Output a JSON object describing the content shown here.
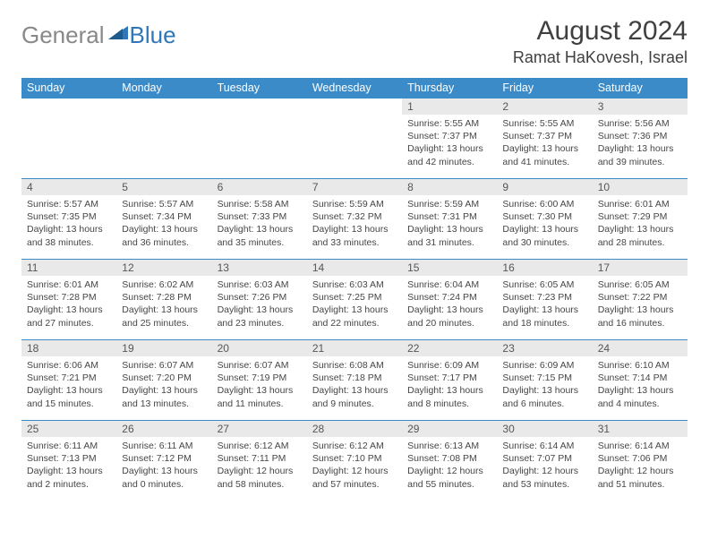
{
  "brand": {
    "general": "General",
    "blue": "Blue"
  },
  "title": "August 2024",
  "location": "Ramat HaKovesh, Israel",
  "colors": {
    "header_bg": "#3b8bc9",
    "header_text": "#ffffff",
    "daynum_bg": "#e9e9e9",
    "row_border": "#3b8bc9",
    "body_text": "#464646",
    "title_text": "#404040",
    "logo_gray": "#888888",
    "logo_blue": "#2f77b8"
  },
  "weekdays": [
    "Sunday",
    "Monday",
    "Tuesday",
    "Wednesday",
    "Thursday",
    "Friday",
    "Saturday"
  ],
  "weeks": [
    [
      null,
      null,
      null,
      null,
      {
        "n": "1",
        "sr": "5:55 AM",
        "ss": "7:37 PM",
        "dl": "13 hours and 42 minutes."
      },
      {
        "n": "2",
        "sr": "5:55 AM",
        "ss": "7:37 PM",
        "dl": "13 hours and 41 minutes."
      },
      {
        "n": "3",
        "sr": "5:56 AM",
        "ss": "7:36 PM",
        "dl": "13 hours and 39 minutes."
      }
    ],
    [
      {
        "n": "4",
        "sr": "5:57 AM",
        "ss": "7:35 PM",
        "dl": "13 hours and 38 minutes."
      },
      {
        "n": "5",
        "sr": "5:57 AM",
        "ss": "7:34 PM",
        "dl": "13 hours and 36 minutes."
      },
      {
        "n": "6",
        "sr": "5:58 AM",
        "ss": "7:33 PM",
        "dl": "13 hours and 35 minutes."
      },
      {
        "n": "7",
        "sr": "5:59 AM",
        "ss": "7:32 PM",
        "dl": "13 hours and 33 minutes."
      },
      {
        "n": "8",
        "sr": "5:59 AM",
        "ss": "7:31 PM",
        "dl": "13 hours and 31 minutes."
      },
      {
        "n": "9",
        "sr": "6:00 AM",
        "ss": "7:30 PM",
        "dl": "13 hours and 30 minutes."
      },
      {
        "n": "10",
        "sr": "6:01 AM",
        "ss": "7:29 PM",
        "dl": "13 hours and 28 minutes."
      }
    ],
    [
      {
        "n": "11",
        "sr": "6:01 AM",
        "ss": "7:28 PM",
        "dl": "13 hours and 27 minutes."
      },
      {
        "n": "12",
        "sr": "6:02 AM",
        "ss": "7:28 PM",
        "dl": "13 hours and 25 minutes."
      },
      {
        "n": "13",
        "sr": "6:03 AM",
        "ss": "7:26 PM",
        "dl": "13 hours and 23 minutes."
      },
      {
        "n": "14",
        "sr": "6:03 AM",
        "ss": "7:25 PM",
        "dl": "13 hours and 22 minutes."
      },
      {
        "n": "15",
        "sr": "6:04 AM",
        "ss": "7:24 PM",
        "dl": "13 hours and 20 minutes."
      },
      {
        "n": "16",
        "sr": "6:05 AM",
        "ss": "7:23 PM",
        "dl": "13 hours and 18 minutes."
      },
      {
        "n": "17",
        "sr": "6:05 AM",
        "ss": "7:22 PM",
        "dl": "13 hours and 16 minutes."
      }
    ],
    [
      {
        "n": "18",
        "sr": "6:06 AM",
        "ss": "7:21 PM",
        "dl": "13 hours and 15 minutes."
      },
      {
        "n": "19",
        "sr": "6:07 AM",
        "ss": "7:20 PM",
        "dl": "13 hours and 13 minutes."
      },
      {
        "n": "20",
        "sr": "6:07 AM",
        "ss": "7:19 PM",
        "dl": "13 hours and 11 minutes."
      },
      {
        "n": "21",
        "sr": "6:08 AM",
        "ss": "7:18 PM",
        "dl": "13 hours and 9 minutes."
      },
      {
        "n": "22",
        "sr": "6:09 AM",
        "ss": "7:17 PM",
        "dl": "13 hours and 8 minutes."
      },
      {
        "n": "23",
        "sr": "6:09 AM",
        "ss": "7:15 PM",
        "dl": "13 hours and 6 minutes."
      },
      {
        "n": "24",
        "sr": "6:10 AM",
        "ss": "7:14 PM",
        "dl": "13 hours and 4 minutes."
      }
    ],
    [
      {
        "n": "25",
        "sr": "6:11 AM",
        "ss": "7:13 PM",
        "dl": "13 hours and 2 minutes."
      },
      {
        "n": "26",
        "sr": "6:11 AM",
        "ss": "7:12 PM",
        "dl": "13 hours and 0 minutes."
      },
      {
        "n": "27",
        "sr": "6:12 AM",
        "ss": "7:11 PM",
        "dl": "12 hours and 58 minutes."
      },
      {
        "n": "28",
        "sr": "6:12 AM",
        "ss": "7:10 PM",
        "dl": "12 hours and 57 minutes."
      },
      {
        "n": "29",
        "sr": "6:13 AM",
        "ss": "7:08 PM",
        "dl": "12 hours and 55 minutes."
      },
      {
        "n": "30",
        "sr": "6:14 AM",
        "ss": "7:07 PM",
        "dl": "12 hours and 53 minutes."
      },
      {
        "n": "31",
        "sr": "6:14 AM",
        "ss": "7:06 PM",
        "dl": "12 hours and 51 minutes."
      }
    ]
  ],
  "labels": {
    "sunrise": "Sunrise: ",
    "sunset": "Sunset: ",
    "daylight": "Daylight: "
  }
}
